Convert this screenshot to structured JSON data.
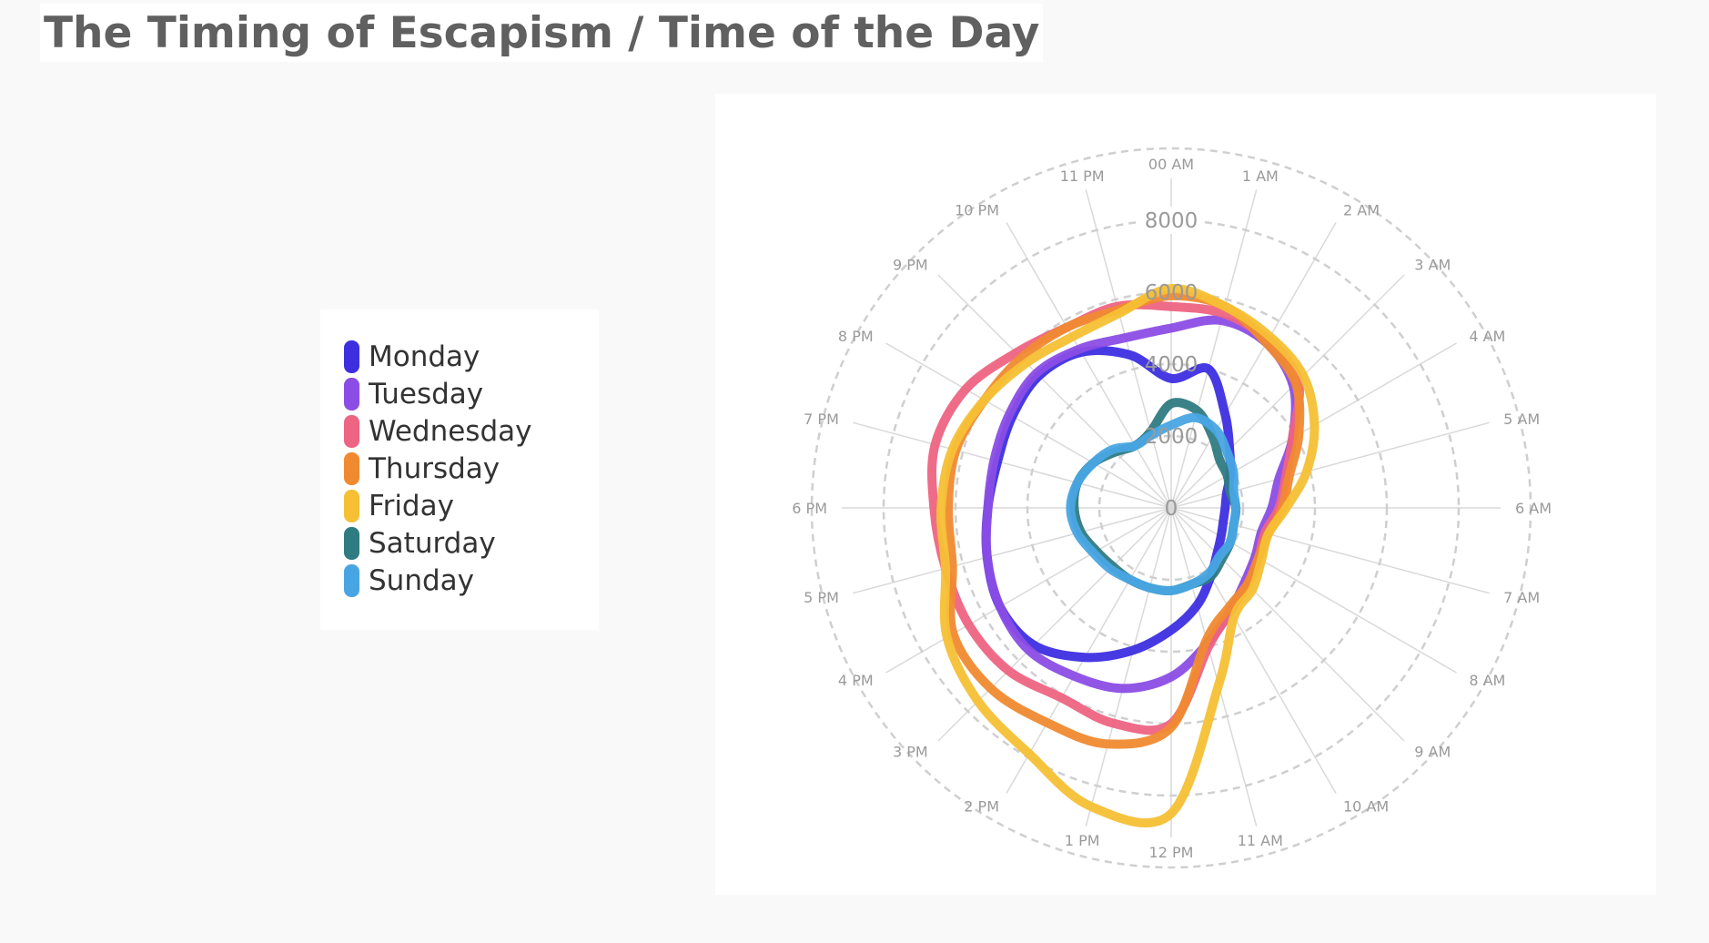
{
  "title": "The Timing of Escapism / Time of the Day",
  "chart_data": {
    "type": "radar",
    "title": "The Timing of Escapism / Time of the Day",
    "angular_axis": [
      "00 AM",
      "1 AM",
      "2 AM",
      "3 AM",
      "4 AM",
      "5 AM",
      "6 AM",
      "7 AM",
      "8 AM",
      "9 AM",
      "10 AM",
      "11 AM",
      "12 PM",
      "1 PM",
      "2 PM",
      "3 PM",
      "4 PM",
      "5 PM",
      "6 PM",
      "7 PM",
      "8 PM",
      "9 PM",
      "10 PM",
      "11 PM"
    ],
    "radial_ticks": [
      0,
      2000,
      4000,
      6000,
      8000
    ],
    "radial_tick_labels": [
      "0",
      "2000",
      "4000",
      "6000",
      "8000"
    ],
    "rlim": [
      0,
      10000
    ],
    "grid": true,
    "legend_position": "left",
    "series": [
      {
        "name": "Monday",
        "color": "#3d2fe0",
        "values": [
          3600,
          4000,
          3000,
          2300,
          1900,
          1600,
          1500,
          1500,
          1600,
          1800,
          2200,
          2800,
          3400,
          4100,
          4800,
          5400,
          5500,
          5300,
          5100,
          5000,
          5100,
          5200,
          5000,
          4400
        ]
      },
      {
        "name": "Tuesday",
        "color": "#8b4de5",
        "values": [
          5000,
          5400,
          5300,
          4800,
          3900,
          3100,
          2800,
          2600,
          2700,
          2900,
          3300,
          3900,
          4700,
          5200,
          5400,
          5600,
          5500,
          5300,
          5100,
          5100,
          5200,
          5300,
          5100,
          4900
        ]
      },
      {
        "name": "Wednesday",
        "color": "#ee6483",
        "values": [
          5600,
          5600,
          5400,
          5000,
          3900,
          3300,
          3000,
          2700,
          2800,
          3000,
          3300,
          4000,
          6000,
          6200,
          6100,
          6400,
          6500,
          6500,
          6600,
          6800,
          6600,
          6100,
          5800,
          5800
        ]
      },
      {
        "name": "Thursday",
        "color": "#f08a30",
        "values": [
          5900,
          5800,
          5300,
          4900,
          4100,
          3400,
          3100,
          2800,
          2800,
          3000,
          3200,
          3800,
          6100,
          6800,
          6900,
          7100,
          7000,
          6300,
          6200,
          6200,
          6000,
          5900,
          5800,
          5700
        ]
      },
      {
        "name": "Friday",
        "color": "#f6c035",
        "values": [
          6100,
          5800,
          5500,
          5200,
          4600,
          3900,
          3200,
          2800,
          2900,
          3200,
          3500,
          5100,
          8500,
          8600,
          7900,
          7600,
          7200,
          6500,
          6400,
          6300,
          6000,
          5700,
          5500,
          5600
        ]
      },
      {
        "name": "Saturday",
        "color": "#2f7b82",
        "values": [
          2900,
          2800,
          2300,
          1900,
          1800,
          1700,
          1800,
          1800,
          1900,
          2000,
          2200,
          2200,
          2300,
          2300,
          2300,
          2300,
          2400,
          2600,
          2700,
          2700,
          2500,
          2200,
          2000,
          2200
        ]
      },
      {
        "name": "Sunday",
        "color": "#48a5e3",
        "values": [
          2300,
          2600,
          2500,
          2200,
          2000,
          1800,
          1800,
          1800,
          1900,
          1900,
          2100,
          2200,
          2300,
          2300,
          2300,
          2400,
          2500,
          2700,
          2800,
          2700,
          2500,
          2300,
          2000,
          2100
        ]
      }
    ]
  }
}
